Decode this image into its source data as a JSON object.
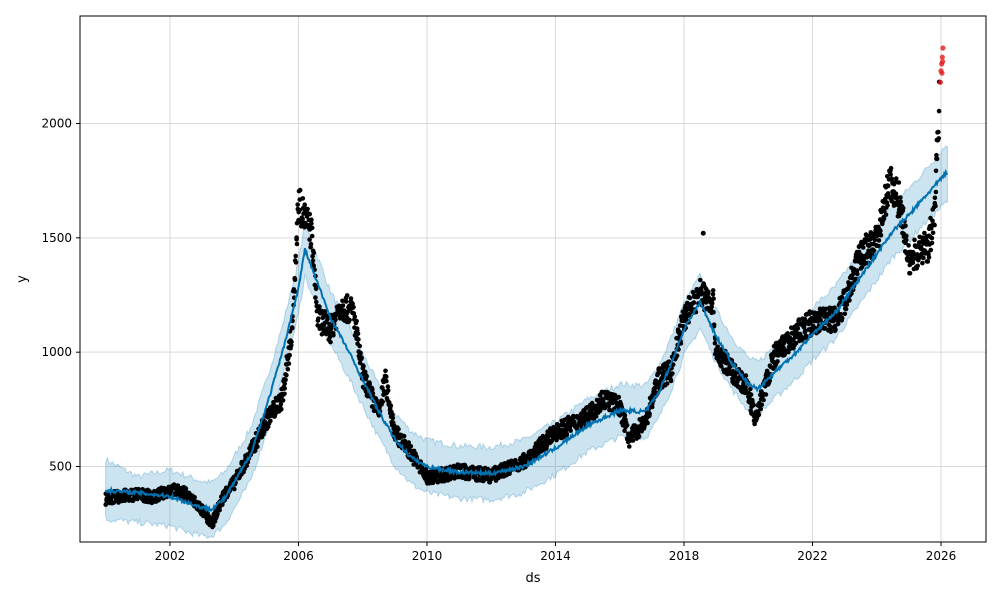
{
  "chart_data": {
    "type": "scatter",
    "title": "",
    "xlabel": "ds",
    "ylabel": "y",
    "xlim": [
      1999.2,
      2027.4
    ],
    "ylim": [
      170,
      2470
    ],
    "x_ticks": [
      2002,
      2006,
      2010,
      2014,
      2018,
      2022,
      2026
    ],
    "x_tick_labels": [
      "2002",
      "2006",
      "2010",
      "2014",
      "2018",
      "2022",
      "2026"
    ],
    "y_ticks": [
      500,
      1000,
      1500,
      2000
    ],
    "y_tick_labels": [
      "500",
      "1000",
      "1500",
      "2000"
    ],
    "grid": true,
    "colors": {
      "actual": "#000000",
      "forecast_line": "#0072B2",
      "band": "#0072B2",
      "outliers": "#e41a1c",
      "grid": "#d9d9d9"
    },
    "series": [
      {
        "role": "forecast_line",
        "x": [
          2000.0,
          2001.0,
          2002.0,
          2002.5,
          2003.0,
          2003.3,
          2003.7,
          2004.0,
          2004.5,
          2005.0,
          2005.5,
          2006.0,
          2006.2,
          2006.6,
          2007.0,
          2007.5,
          2008.0,
          2008.5,
          2009.0,
          2009.5,
          2010.0,
          2011.0,
          2012.0,
          2013.0,
          2014.0,
          2015.0,
          2016.0,
          2016.8,
          2017.2,
          2017.6,
          2018.0,
          2018.5,
          2019.0,
          2019.5,
          2020.0,
          2020.3,
          2020.8,
          2021.5,
          2022.0,
          2022.7,
          2023.0,
          2023.5,
          2024.0,
          2024.5,
          2025.0,
          2025.5,
          2026.2
        ],
        "y": [
          395,
          385,
          370,
          345,
          320,
          315,
          360,
          430,
          550,
          760,
          1000,
          1280,
          1450,
          1300,
          1150,
          1020,
          880,
          740,
          620,
          540,
          500,
          475,
          470,
          500,
          580,
          680,
          745,
          740,
          820,
          950,
          1100,
          1220,
          1070,
          950,
          860,
          840,
          910,
          1000,
          1080,
          1170,
          1230,
          1330,
          1430,
          1530,
          1600,
          1680,
          1790
        ]
      },
      {
        "role": "uncertainty_band",
        "x": [
          2000.0,
          2001.0,
          2002.0,
          2002.5,
          2003.0,
          2003.3,
          2003.7,
          2004.0,
          2004.5,
          2005.0,
          2005.5,
          2006.0,
          2006.2,
          2006.6,
          2007.0,
          2007.5,
          2008.0,
          2008.5,
          2009.0,
          2009.5,
          2010.0,
          2011.0,
          2012.0,
          2013.0,
          2014.0,
          2015.0,
          2016.0,
          2016.8,
          2017.2,
          2017.6,
          2018.0,
          2018.5,
          2019.0,
          2019.5,
          2020.0,
          2020.3,
          2020.8,
          2021.5,
          2022.0,
          2022.7,
          2023.0,
          2023.5,
          2024.0,
          2024.5,
          2025.0,
          2025.5,
          2026.2
        ],
        "upper": [
          530,
          455,
          485,
          460,
          435,
          430,
          475,
          545,
          665,
          875,
          1115,
          1395,
          1565,
          1415,
          1265,
          1135,
          995,
          855,
          735,
          655,
          615,
          590,
          585,
          615,
          695,
          795,
          860,
          855,
          935,
          1065,
          1215,
          1335,
          1185,
          1065,
          975,
          955,
          1025,
          1115,
          1195,
          1285,
          1345,
          1445,
          1545,
          1645,
          1715,
          1795,
          1910
        ],
        "lower": [
          270,
          255,
          240,
          215,
          195,
          195,
          245,
          315,
          435,
          645,
          885,
          1165,
          1335,
          1185,
          1035,
          905,
          765,
          625,
          505,
          425,
          385,
          360,
          355,
          385,
          465,
          565,
          630,
          625,
          705,
          835,
          985,
          1105,
          955,
          835,
          745,
          725,
          795,
          885,
          965,
          1055,
          1115,
          1215,
          1315,
          1415,
          1485,
          1565,
          1660
        ]
      },
      {
        "role": "actual_anchors",
        "x": [
          2000.0,
          2001.0,
          2001.5,
          2002.0,
          2002.5,
          2003.0,
          2003.3,
          2003.7,
          2004.0,
          2004.5,
          2005.0,
          2005.5,
          2005.8,
          2006.0,
          2006.2,
          2006.4,
          2006.6,
          2007.0,
          2007.3,
          2007.7,
          2008.0,
          2008.5,
          2008.7,
          2009.0,
          2009.5,
          2010.0,
          2011.0,
          2012.0,
          2013.0,
          2014.0,
          2015.0,
          2015.5,
          2016.0,
          2016.3,
          2016.8,
          2017.2,
          2017.6,
          2018.0,
          2018.5,
          2018.9,
          2019.0,
          2019.5,
          2020.0,
          2020.2,
          2020.8,
          2021.5,
          2022.0,
          2022.7,
          2023.0,
          2023.5,
          2024.0,
          2024.4,
          2024.7,
          2025.0,
          2025.3,
          2025.6,
          2025.8,
          2025.95
        ],
        "y": [
          360,
          380,
          365,
          400,
          380,
          310,
          250,
          380,
          430,
          560,
          700,
          800,
          1100,
          1650,
          1590,
          1520,
          1150,
          1100,
          1200,
          1180,
          900,
          730,
          880,
          650,
          560,
          450,
          480,
          460,
          520,
          650,
          720,
          800,
          760,
          620,
          700,
          880,
          920,
          1150,
          1260,
          1220,
          1000,
          920,
          840,
          700,
          980,
          1080,
          1130,
          1150,
          1220,
          1430,
          1480,
          1750,
          1660,
          1400,
          1440,
          1460,
          1600,
          2130
        ]
      },
      {
        "role": "forecast_points",
        "x": [
          2025.98,
          2026.0,
          2026.02,
          2026.03,
          2026.04,
          2026.05,
          2026.06
        ],
        "y": [
          2180,
          2230,
          2260,
          2220,
          2290,
          2270,
          2330
        ]
      }
    ]
  }
}
